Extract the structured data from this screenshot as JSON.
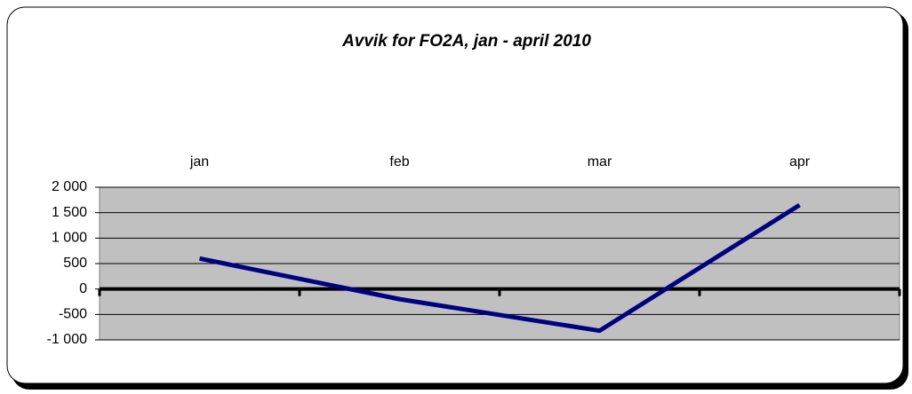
{
  "chart_data": {
    "type": "line",
    "title": "Avvik for FO2A, jan - april 2010",
    "categories": [
      "jan",
      "feb",
      "mar",
      "apr"
    ],
    "series": [
      {
        "name": "FO2A",
        "color": "#000080",
        "values": [
          600,
          -200,
          -820,
          1650
        ]
      }
    ],
    "ylim": [
      -1000,
      2000
    ],
    "yticks": [
      {
        "value": -1000,
        "label": "-1 000"
      },
      -500,
      0,
      500,
      {
        "value": 1000,
        "label": "1 000"
      },
      {
        "value": 1500,
        "label": "1 500"
      },
      {
        "value": 2000,
        "label": "2 000"
      }
    ],
    "grid": true
  }
}
